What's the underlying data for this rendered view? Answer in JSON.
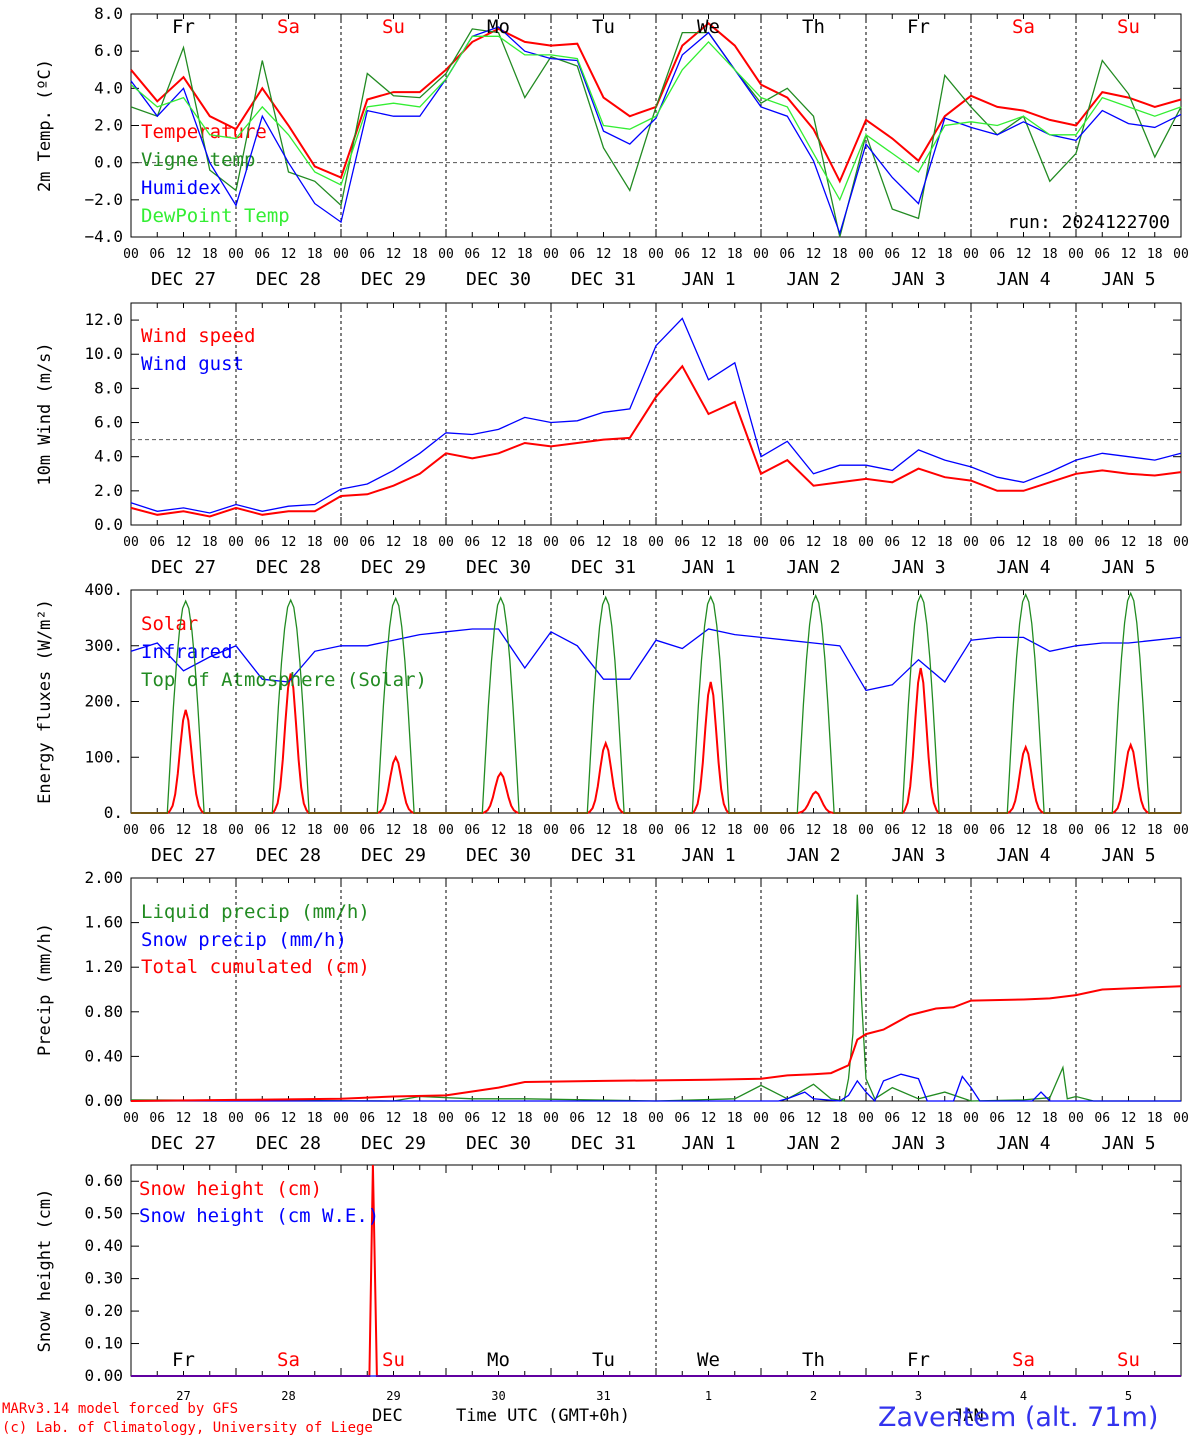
{
  "colors": {
    "red": "#ff0000",
    "green": "#228b22",
    "blue": "#0000ff",
    "lightgreen": "#33ee33"
  },
  "hour_ticks": [
    "00",
    "06",
    "12",
    "18"
  ],
  "date_labels": [
    "DEC 27",
    "DEC 28",
    "DEC 29",
    "DEC 30",
    "DEC 31",
    "JAN  1",
    "JAN  2",
    "JAN  3",
    "JAN  4",
    "JAN  5"
  ],
  "weekdays": [
    {
      "label": "Fr",
      "color": "#000000"
    },
    {
      "label": "Sa",
      "color": "#ff0000"
    },
    {
      "label": "Su",
      "color": "#ff0000"
    },
    {
      "label": "Mo",
      "color": "#000000"
    },
    {
      "label": "Tu",
      "color": "#000000"
    },
    {
      "label": "We",
      "color": "#000000"
    },
    {
      "label": "Th",
      "color": "#000000"
    },
    {
      "label": "Fr",
      "color": "#000000"
    },
    {
      "label": "Sa",
      "color": "#ff0000"
    },
    {
      "label": "Su",
      "color": "#ff0000"
    }
  ],
  "run_label": "run: 2024122700",
  "footer": {
    "model": "MARv3.14 model forced by GFS",
    "lab": "(c) Lab. of Climatology, University of Liege",
    "month1": "DEC",
    "month2": "JAN",
    "xlabel": "Time UTC (GMT+0h)",
    "station": "Zaventem (alt. 71m)",
    "day_numbers": [
      "27",
      "28",
      "29",
      "30",
      "31",
      "1",
      "2",
      "3",
      "4",
      "5"
    ]
  },
  "chart_data": [
    {
      "type": "line",
      "ylabel": "2m Temp. (ºC)",
      "ylim": [
        -4,
        8
      ],
      "yticks": [
        "8.0",
        "6.0",
        "4.0",
        "2.0",
        "0.0",
        "−2.0",
        "−4.0"
      ],
      "ytick_values": [
        8,
        6,
        4,
        2,
        0,
        -2,
        -4
      ],
      "ref_line": 0,
      "x_hours": [
        0,
        6,
        12,
        18,
        24,
        30,
        36,
        42,
        48,
        54,
        60,
        66,
        72,
        78,
        84,
        90,
        96,
        102,
        108,
        114,
        120,
        126,
        132,
        138,
        144,
        150,
        156,
        162,
        168,
        174,
        180,
        186,
        192,
        198,
        204,
        210,
        216,
        222,
        228,
        234,
        240
      ],
      "series": [
        {
          "name": "Temperature",
          "color": "#ff0000",
          "values": [
            5.0,
            3.3,
            4.6,
            2.5,
            1.8,
            4.0,
            2.0,
            -0.2,
            -0.8,
            3.4,
            3.8,
            3.8,
            5.0,
            6.5,
            7.2,
            6.5,
            6.3,
            6.4,
            3.5,
            2.5,
            3.0,
            6.3,
            7.5,
            6.3,
            4.2,
            3.5,
            1.8,
            -1.0,
            2.3,
            1.3,
            0.1,
            2.5,
            3.6,
            3.0,
            2.8,
            2.3,
            2.0,
            3.8,
            3.5,
            3.0,
            3.4
          ]
        },
        {
          "name": "Vigne temp",
          "color": "#228b22",
          "values": [
            3.0,
            2.5,
            6.2,
            -0.4,
            -1.5,
            5.5,
            -0.5,
            -1.0,
            -2.3,
            4.8,
            3.6,
            3.5,
            4.8,
            7.2,
            7.0,
            3.5,
            5.7,
            5.2,
            0.8,
            -1.5,
            3.0,
            7.0,
            7.0,
            5.0,
            3.2,
            4.0,
            2.5,
            -4.0,
            1.5,
            -2.5,
            -3.0,
            4.7,
            3.0,
            1.5,
            2.5,
            -1.0,
            0.5,
            5.5,
            3.7,
            0.3,
            3.0
          ]
        },
        {
          "name": "Humidex",
          "color": "#0000ff",
          "values": [
            4.4,
            2.5,
            4.0,
            0.0,
            -2.3,
            2.5,
            0.0,
            -2.2,
            -3.2,
            2.8,
            2.5,
            2.5,
            4.5,
            6.8,
            7.3,
            6.0,
            5.6,
            5.5,
            1.7,
            1.0,
            2.4,
            5.8,
            7.0,
            5.0,
            3.0,
            2.5,
            0.1,
            -3.8,
            1.0,
            -0.8,
            -2.2,
            2.4,
            1.9,
            1.5,
            2.2,
            1.5,
            1.2,
            2.8,
            2.1,
            1.9,
            2.6
          ]
        },
        {
          "name": "DewPoint Temp",
          "color": "#33ee33",
          "values": [
            4.2,
            3.0,
            3.5,
            1.5,
            1.3,
            3.0,
            1.5,
            -0.5,
            -1.2,
            3.0,
            3.2,
            3.0,
            4.5,
            6.8,
            6.8,
            5.8,
            5.8,
            5.6,
            2.0,
            1.8,
            2.5,
            5.0,
            6.5,
            5.0,
            3.5,
            3.0,
            0.5,
            -2.0,
            1.5,
            0.5,
            -0.5,
            2.0,
            2.2,
            2.0,
            2.5,
            1.5,
            1.5,
            3.5,
            3.0,
            2.5,
            3.0
          ]
        }
      ]
    },
    {
      "type": "line",
      "ylabel": "10m Wind (m/s)",
      "ylim": [
        0,
        13
      ],
      "yticks": [
        "12.0",
        "10.0",
        "8.0",
        "6.0",
        "4.0",
        "2.0",
        "0.0"
      ],
      "ytick_values": [
        12,
        10,
        8,
        6,
        4,
        2,
        0
      ],
      "ref_line": 5,
      "x_hours": [
        0,
        6,
        12,
        18,
        24,
        30,
        36,
        42,
        48,
        54,
        60,
        66,
        72,
        78,
        84,
        90,
        96,
        102,
        108,
        114,
        120,
        126,
        132,
        138,
        144,
        150,
        156,
        162,
        168,
        174,
        180,
        186,
        192,
        198,
        204,
        210,
        216,
        222,
        228,
        234,
        240
      ],
      "series": [
        {
          "name": "Wind speed",
          "color": "#ff0000",
          "values": [
            1.0,
            0.6,
            0.8,
            0.5,
            1.0,
            0.6,
            0.8,
            0.8,
            1.7,
            1.8,
            2.3,
            3.0,
            4.2,
            3.9,
            4.2,
            4.8,
            4.6,
            4.8,
            5.0,
            5.1,
            7.5,
            9.3,
            6.5,
            7.2,
            3.0,
            3.8,
            2.3,
            2.5,
            2.7,
            2.5,
            3.3,
            2.8,
            2.6,
            2.0,
            2.0,
            2.5,
            3.0,
            3.2,
            3.0,
            2.9,
            3.1
          ]
        },
        {
          "name": "Wind gust",
          "color": "#0000ff",
          "values": [
            1.3,
            0.8,
            1.0,
            0.7,
            1.2,
            0.8,
            1.1,
            1.2,
            2.1,
            2.4,
            3.2,
            4.2,
            5.4,
            5.3,
            5.6,
            6.3,
            6.0,
            6.1,
            6.6,
            6.8,
            10.5,
            12.1,
            8.5,
            9.5,
            4.0,
            4.9,
            3.0,
            3.5,
            3.5,
            3.2,
            4.4,
            3.8,
            3.4,
            2.8,
            2.5,
            3.1,
            3.8,
            4.2,
            4.0,
            3.8,
            4.2
          ]
        }
      ]
    },
    {
      "type": "line",
      "ylabel": "Energy fluxes (W/m²)",
      "ylim": [
        0,
        400
      ],
      "yticks": [
        "400.",
        "300.",
        "200.",
        "100.",
        "0."
      ],
      "ytick_values": [
        400,
        300,
        200,
        100,
        0
      ],
      "series": [
        {
          "name": "Solar",
          "color": "#ff0000",
          "peaks": [
            185,
            250,
            100,
            72,
            125,
            235,
            38,
            260,
            118,
            122
          ]
        },
        {
          "name": "Infrared",
          "color": "#0000ff",
          "x_hours": [
            0,
            6,
            12,
            18,
            24,
            30,
            36,
            42,
            48,
            54,
            60,
            66,
            72,
            78,
            84,
            90,
            96,
            102,
            108,
            114,
            120,
            126,
            132,
            138,
            144,
            150,
            156,
            162,
            168,
            174,
            180,
            186,
            192,
            198,
            204,
            210,
            216,
            222,
            228,
            234,
            240
          ],
          "values": [
            290,
            305,
            255,
            280,
            300,
            240,
            235,
            290,
            300,
            300,
            310,
            320,
            325,
            330,
            330,
            260,
            325,
            300,
            240,
            240,
            310,
            295,
            330,
            320,
            315,
            310,
            305,
            300,
            220,
            230,
            275,
            235,
            310,
            315,
            315,
            290,
            300,
            305,
            305,
            310,
            315
          ]
        },
        {
          "name": "Top of Atmosphere (Solar)",
          "color": "#228b22",
          "peaks": [
            380,
            382,
            385,
            386,
            387,
            388,
            390,
            391,
            392,
            394
          ]
        }
      ]
    },
    {
      "type": "line",
      "ylabel": "Precip (mm/h)",
      "ylim": [
        0,
        2
      ],
      "yticks": [
        "2.00",
        "1.60",
        "1.20",
        "0.80",
        "0.40",
        "0.00"
      ],
      "ytick_values": [
        2.0,
        1.6,
        1.2,
        0.8,
        0.4,
        0.0
      ],
      "series": [
        {
          "name": "Liquid precip (mm/h)",
          "color": "#228b22",
          "points": [
            [
              0,
              0.01
            ],
            [
              60,
              0.0
            ],
            [
              66,
              0.04
            ],
            [
              78,
              0.02
            ],
            [
              90,
              0.02
            ],
            [
              120,
              0.0
            ],
            [
              138,
              0.02
            ],
            [
              144,
              0.14
            ],
            [
              150,
              0.02
            ],
            [
              152,
              0.06
            ],
            [
              156,
              0.15
            ],
            [
              160,
              0.02
            ],
            [
              163,
              0.0
            ],
            [
              164,
              0.2
            ],
            [
              165,
              0.6
            ],
            [
              166,
              1.85
            ],
            [
              167,
              0.9
            ],
            [
              168,
              0.2
            ],
            [
              170,
              0.02
            ],
            [
              174,
              0.12
            ],
            [
              180,
              0.02
            ],
            [
              186,
              0.08
            ],
            [
              192,
              0.0
            ],
            [
              204,
              0.01
            ],
            [
              210,
              0.03
            ],
            [
              213,
              0.3
            ],
            [
              214,
              0.02
            ],
            [
              216,
              0.04
            ],
            [
              220,
              0.0
            ],
            [
              240,
              0.0
            ]
          ]
        },
        {
          "name": "Snow precip (mm/h)",
          "color": "#0000ff",
          "points": [
            [
              0,
              0.0
            ],
            [
              96,
              0.0
            ],
            [
              120,
              0.0
            ],
            [
              140,
              0.0
            ],
            [
              148,
              0.0
            ],
            [
              150,
              0.02
            ],
            [
              154,
              0.08
            ],
            [
              156,
              0.02
            ],
            [
              162,
              0.0
            ],
            [
              164,
              0.05
            ],
            [
              166,
              0.18
            ],
            [
              168,
              0.08
            ],
            [
              170,
              0.0
            ],
            [
              172,
              0.18
            ],
            [
              176,
              0.24
            ],
            [
              180,
              0.2
            ],
            [
              182,
              0.0
            ],
            [
              188,
              0.0
            ],
            [
              190,
              0.22
            ],
            [
              192,
              0.12
            ],
            [
              194,
              0.0
            ],
            [
              196,
              0.0
            ],
            [
              206,
              0.0
            ],
            [
              208,
              0.08
            ],
            [
              210,
              0.0
            ],
            [
              222,
              0.0
            ],
            [
              225,
              0.0
            ],
            [
              240,
              0.0
            ]
          ]
        },
        {
          "name": "Total cumulated (cm)",
          "color": "#ff0000",
          "points": [
            [
              0,
              0.0
            ],
            [
              24,
              0.01
            ],
            [
              48,
              0.02
            ],
            [
              60,
              0.04
            ],
            [
              72,
              0.05
            ],
            [
              84,
              0.12
            ],
            [
              90,
              0.17
            ],
            [
              108,
              0.18
            ],
            [
              132,
              0.19
            ],
            [
              144,
              0.2
            ],
            [
              150,
              0.23
            ],
            [
              156,
              0.24
            ],
            [
              160,
              0.25
            ],
            [
              164,
              0.32
            ],
            [
              166,
              0.55
            ],
            [
              168,
              0.6
            ],
            [
              172,
              0.64
            ],
            [
              178,
              0.77
            ],
            [
              184,
              0.83
            ],
            [
              188,
              0.84
            ],
            [
              192,
              0.9
            ],
            [
              204,
              0.91
            ],
            [
              210,
              0.92
            ],
            [
              216,
              0.95
            ],
            [
              222,
              1.0
            ],
            [
              228,
              1.01
            ],
            [
              240,
              1.03
            ]
          ]
        }
      ]
    },
    {
      "type": "line",
      "ylabel": "Snow height (cm)",
      "ylim": [
        0,
        0.65
      ],
      "yticks": [
        "0.60",
        "0.50",
        "0.40",
        "0.30",
        "0.20",
        "0.10",
        "0.00"
      ],
      "ytick_values": [
        0.6,
        0.5,
        0.4,
        0.3,
        0.2,
        0.1,
        0.0
      ],
      "series": [
        {
          "name": "Snow height (cm)",
          "color": "#ff0000",
          "points": [
            [
              0,
              0
            ],
            [
              54.5,
              0
            ],
            [
              55.3,
              0.65
            ],
            [
              56.2,
              0
            ],
            [
              240,
              0
            ]
          ]
        },
        {
          "name": "Snow height (cm W.E.)",
          "color": "#0000ff",
          "points": [
            [
              0,
              0
            ],
            [
              240,
              0
            ]
          ]
        }
      ]
    }
  ]
}
